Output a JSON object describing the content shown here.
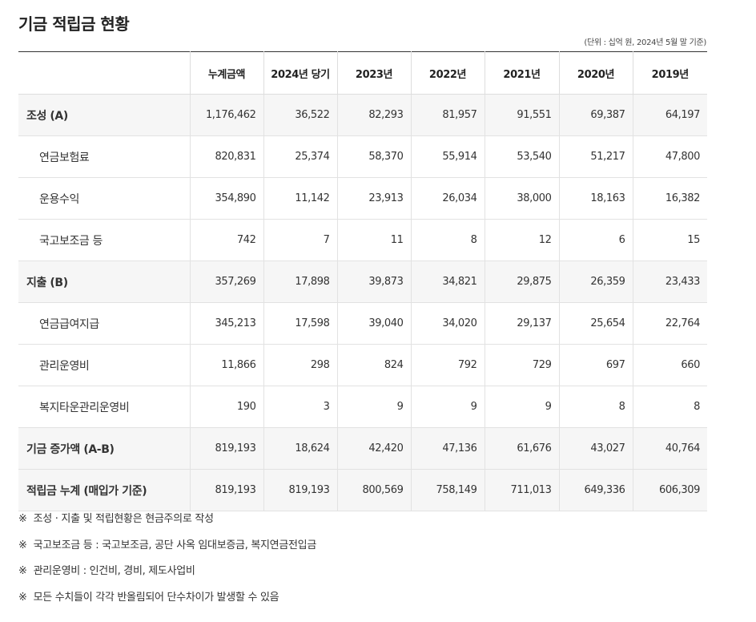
{
  "title": "기금 적립금 현황",
  "unit": "(단위 : 십억 원, 2024년 5월 말 기준)",
  "table": {
    "headers": [
      "",
      "누계금액",
      "2024년 당기",
      "2023년",
      "2022년",
      "2021년",
      "2020년",
      "2019년"
    ],
    "rows": [
      {
        "label": "조성 (A)",
        "main": true,
        "values": [
          "1,176,462",
          "36,522",
          "82,293",
          "81,957",
          "91,551",
          "69,387",
          "64,197"
        ]
      },
      {
        "label": "연금보험료",
        "main": false,
        "values": [
          "820,831",
          "25,374",
          "58,370",
          "55,914",
          "53,540",
          "51,217",
          "47,800"
        ]
      },
      {
        "label": "운용수익",
        "main": false,
        "values": [
          "354,890",
          "11,142",
          "23,913",
          "26,034",
          "38,000",
          "18,163",
          "16,382"
        ]
      },
      {
        "label": "국고보조금 등",
        "main": false,
        "values": [
          "742",
          "7",
          "11",
          "8",
          "12",
          "6",
          "15"
        ]
      },
      {
        "label": "지출 (B)",
        "main": true,
        "values": [
          "357,269",
          "17,898",
          "39,873",
          "34,821",
          "29,875",
          "26,359",
          "23,433"
        ]
      },
      {
        "label": "연금급여지급",
        "main": false,
        "values": [
          "345,213",
          "17,598",
          "39,040",
          "34,020",
          "29,137",
          "25,654",
          "22,764"
        ]
      },
      {
        "label": "관리운영비",
        "main": false,
        "values": [
          "11,866",
          "298",
          "824",
          "792",
          "729",
          "697",
          "660"
        ]
      },
      {
        "label": "복지타운관리운영비",
        "main": false,
        "values": [
          "190",
          "3",
          "9",
          "9",
          "9",
          "8",
          "8"
        ]
      },
      {
        "label": "기금 증가액 (A-B)",
        "main": true,
        "values": [
          "819,193",
          "18,624",
          "42,420",
          "47,136",
          "61,676",
          "43,027",
          "40,764"
        ]
      },
      {
        "label": "적립금 누계 (매입가 기준)",
        "main": true,
        "values": [
          "819,193",
          "819,193",
          "800,569",
          "758,149",
          "711,013",
          "649,336",
          "606,309"
        ]
      }
    ]
  },
  "notes": {
    "mark": "※",
    "items": [
      "조성 · 지출 및 적립현황은 현금주의로 작성",
      "국고보조금 등 : 국고보조금, 공단 사옥 임대보증금, 복지연금전입금",
      "관리운영비 : 인건비, 경비, 제도사업비",
      "모든 수치들이 각각 반올림되어 단수차이가 발생할 수 있음"
    ]
  }
}
